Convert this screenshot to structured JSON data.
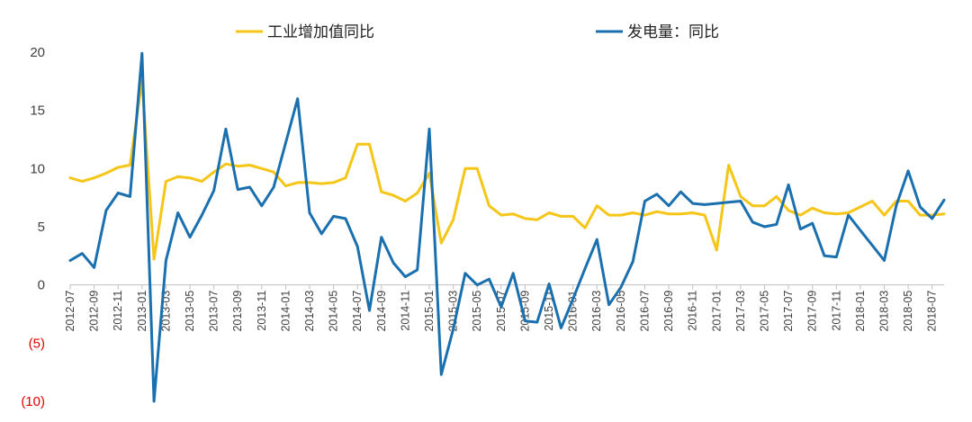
{
  "chart_data": {
    "type": "line",
    "title": "",
    "xlabel": "",
    "ylabel": "",
    "ylim": [
      -10,
      20
    ],
    "yticks": [
      20,
      15,
      10,
      5,
      0,
      -5,
      -10
    ],
    "ytick_labels": [
      "20",
      "15",
      "10",
      "5",
      "0",
      "(5)",
      "(10)"
    ],
    "legend_position": "top",
    "grid": false,
    "x_tick_labels": [
      "2012-07",
      "2012-09",
      "2012-11",
      "2013-01",
      "2013-03",
      "2013-05",
      "2013-07",
      "2013-09",
      "2013-11",
      "2014-01",
      "2014-03",
      "2014-05",
      "2014-07",
      "2014-09",
      "2014-11",
      "2015-01",
      "2015-03",
      "2015-05",
      "2015-07",
      "2015-09",
      "2015-11",
      "2016-01",
      "2016-03",
      "2016-05",
      "2016-07",
      "2016-09",
      "2016-11",
      "2017-01",
      "2017-03",
      "2017-05",
      "2017-07",
      "2017-09",
      "2017-11",
      "2018-01",
      "2018-03",
      "2018-05",
      "2018-07"
    ],
    "x": [
      "2012-07",
      "2012-08",
      "2012-09",
      "2012-10",
      "2012-11",
      "2012-12",
      "2013-01",
      "2013-02",
      "2013-03",
      "2013-04",
      "2013-05",
      "2013-06",
      "2013-07",
      "2013-08",
      "2013-09",
      "2013-10",
      "2013-11",
      "2013-12",
      "2014-01",
      "2014-02",
      "2014-03",
      "2014-04",
      "2014-05",
      "2014-06",
      "2014-07",
      "2014-08",
      "2014-09",
      "2014-10",
      "2014-11",
      "2014-12",
      "2015-01",
      "2015-02",
      "2015-03",
      "2015-04",
      "2015-05",
      "2015-06",
      "2015-07",
      "2015-08",
      "2015-09",
      "2015-10",
      "2015-11",
      "2015-12",
      "2016-01",
      "2016-02",
      "2016-03",
      "2016-04",
      "2016-05",
      "2016-06",
      "2016-07",
      "2016-08",
      "2016-09",
      "2016-10",
      "2016-11",
      "2016-12",
      "2017-01",
      "2017-02",
      "2017-03",
      "2017-04",
      "2017-05",
      "2017-06",
      "2017-07",
      "2017-08",
      "2017-09",
      "2017-10",
      "2017-11",
      "2017-12",
      "2018-01",
      "2018-02",
      "2018-03",
      "2018-04",
      "2018-05",
      "2018-06",
      "2018-07",
      "2018-08"
    ],
    "series": [
      {
        "name": "工业增加值同比",
        "color": "#f5c518",
        "values": [
          9.2,
          8.9,
          9.2,
          9.6,
          10.1,
          10.3,
          17.6,
          2.2,
          8.9,
          9.3,
          9.2,
          8.9,
          9.7,
          10.4,
          10.2,
          10.3,
          10.0,
          9.7,
          8.5,
          8.8,
          8.8,
          8.7,
          8.8,
          9.2,
          12.1,
          12.1,
          8.0,
          7.7,
          7.2,
          7.9,
          9.6,
          3.6,
          5.6,
          10.0,
          10.0,
          6.8,
          6.0,
          6.1,
          5.7,
          5.6,
          6.2,
          5.9,
          5.9,
          4.9,
          6.8,
          6.0,
          6.0,
          6.2,
          6.0,
          6.3,
          6.1,
          6.1,
          6.2,
          6.0,
          3.0,
          10.3,
          7.6,
          6.8,
          6.8,
          7.6,
          6.4,
          6.0,
          6.6,
          6.2,
          6.1,
          6.2,
          6.7,
          7.2,
          6.0,
          7.2,
          7.2,
          6.0,
          6.0,
          6.1
        ]
      },
      {
        "name": "发电量：同比",
        "color": "#1a6fae",
        "values": [
          2.1,
          2.7,
          1.5,
          6.4,
          7.9,
          7.6,
          19.9,
          -10.0,
          2.1,
          6.2,
          4.1,
          6.0,
          8.1,
          13.4,
          8.2,
          8.4,
          6.8,
          8.4,
          12.2,
          16.0,
          6.2,
          4.4,
          5.9,
          5.7,
          3.3,
          -2.2,
          4.1,
          1.9,
          0.7,
          1.3,
          13.4,
          -7.7,
          -3.8,
          1.0,
          0.0,
          0.5,
          -1.9,
          1.0,
          -3.1,
          -3.2,
          0.1,
          -3.7,
          -1.2,
          1.4,
          3.9,
          -1.7,
          -0.2,
          2.0,
          7.2,
          7.8,
          6.8,
          8.0,
          7.0,
          6.9,
          7.0,
          7.1,
          7.2,
          5.4,
          5.0,
          5.2,
          8.6,
          4.8,
          5.3,
          2.5,
          2.4,
          6.0,
          4.7,
          3.4,
          2.1,
          6.8,
          9.8,
          6.7,
          5.7,
          7.3
        ]
      }
    ]
  }
}
